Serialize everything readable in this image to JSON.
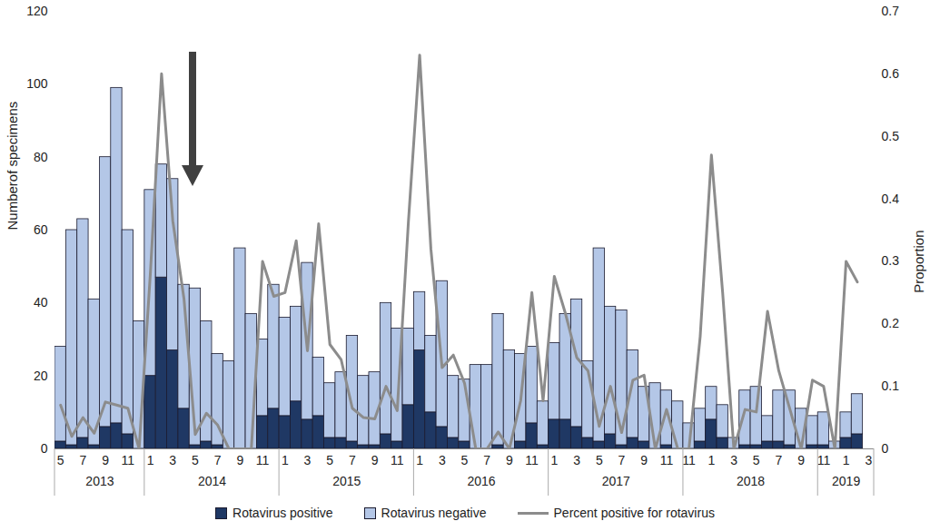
{
  "chart_data": {
    "type": "bar",
    "stacked": true,
    "grid": false,
    "legend": "bottom",
    "ylabel": "Numberof specimens",
    "y2label": "Proportion",
    "ylim": [
      0,
      120
    ],
    "yticks": [
      0,
      20,
      40,
      60,
      80,
      100,
      120
    ],
    "y2lim": [
      0,
      0.7
    ],
    "y2ticks": [
      0,
      0.1,
      0.2,
      0.3,
      0.4,
      0.5,
      0.6,
      0.7
    ],
    "categories": [
      "5",
      null,
      "7",
      null,
      "9",
      null,
      "11",
      null,
      "1",
      null,
      "3",
      null,
      "5",
      null,
      "7",
      null,
      "9",
      null,
      "11",
      null,
      "1",
      null,
      "3",
      null,
      "5",
      null,
      "7",
      null,
      "9",
      null,
      "11",
      null,
      "1",
      null,
      "3",
      null,
      "5",
      null,
      "7",
      null,
      "9",
      null,
      "11",
      null,
      "1",
      null,
      "3",
      null,
      "5",
      null,
      "7",
      null,
      "9",
      null,
      "11",
      null,
      "11",
      null,
      "1",
      null,
      "3",
      null,
      "5",
      null,
      "7",
      null,
      "9",
      null,
      "11",
      null,
      "1",
      null,
      "3"
    ],
    "x_groups": [
      {
        "label": "2013",
        "count": 8
      },
      {
        "label": "2014",
        "count": 12
      },
      {
        "label": "2015",
        "count": 12
      },
      {
        "label": "2016",
        "count": 12
      },
      {
        "label": "2017",
        "count": 12
      },
      {
        "label": "2018",
        "count": 12
      },
      {
        "label": "2019",
        "count": 5
      }
    ],
    "series": [
      {
        "name": "Rotavirus positive",
        "type": "bar",
        "color": "#1f3864",
        "values": [
          2,
          1,
          3,
          1,
          6,
          7,
          4,
          0,
          20,
          47,
          27,
          11,
          1,
          2,
          1,
          0,
          0,
          0,
          9,
          11,
          9,
          13,
          8,
          9,
          3,
          3,
          2,
          1,
          1,
          4,
          2,
          12,
          27,
          10,
          6,
          3,
          2,
          0,
          0,
          1,
          0,
          2,
          7,
          1,
          8,
          8,
          6,
          3,
          2,
          4,
          1,
          3,
          2,
          0,
          1,
          0,
          0,
          2,
          8,
          3,
          0,
          1,
          1,
          2,
          2,
          1,
          0,
          1,
          1,
          0,
          3,
          4,
          null
        ]
      },
      {
        "name": "Rotavirus negative",
        "type": "bar",
        "color": "#b4c7e7",
        "values": [
          26,
          59,
          60,
          40,
          74,
          92,
          56,
          35,
          51,
          31,
          47,
          34,
          43,
          33,
          25,
          24,
          55,
          37,
          21,
          34,
          27,
          26,
          43,
          16,
          15,
          18,
          29,
          19,
          20,
          36,
          31,
          21,
          16,
          21,
          40,
          17,
          17,
          23,
          23,
          36,
          27,
          24,
          21,
          12,
          21,
          29,
          35,
          21,
          53,
          35,
          37,
          24,
          15,
          18,
          15,
          13,
          7,
          9,
          9,
          9,
          3,
          15,
          16,
          7,
          14,
          15,
          11,
          8,
          9,
          2,
          7,
          11,
          null
        ]
      },
      {
        "name": "Percent positive for rotavirus",
        "type": "line",
        "axis": "y2",
        "color": "#8c8c8c",
        "values": [
          0.07,
          0.02,
          0.05,
          0.025,
          0.075,
          0.07,
          0.065,
          0,
          0.28,
          0.6,
          0.365,
          0.24,
          0.023,
          0.057,
          0.038,
          0,
          0,
          0,
          0.3,
          0.244,
          0.25,
          0.333,
          0.157,
          0.36,
          0.167,
          0.143,
          0.065,
          0.05,
          0.048,
          0.1,
          0.061,
          0.364,
          0.63,
          0.32,
          0.13,
          0.15,
          0.105,
          0,
          0,
          0.027,
          0,
          0.077,
          0.25,
          0.077,
          0.276,
          0.216,
          0.146,
          0.125,
          0.036,
          0.1,
          0.026,
          0.11,
          0.118,
          0,
          0.063,
          0,
          0,
          0.18,
          0.47,
          0.25,
          0,
          0.063,
          0.059,
          0.22,
          0.125,
          0.063,
          0,
          0.11,
          0.1,
          0,
          0.3,
          0.267,
          null
        ]
      }
    ]
  }
}
